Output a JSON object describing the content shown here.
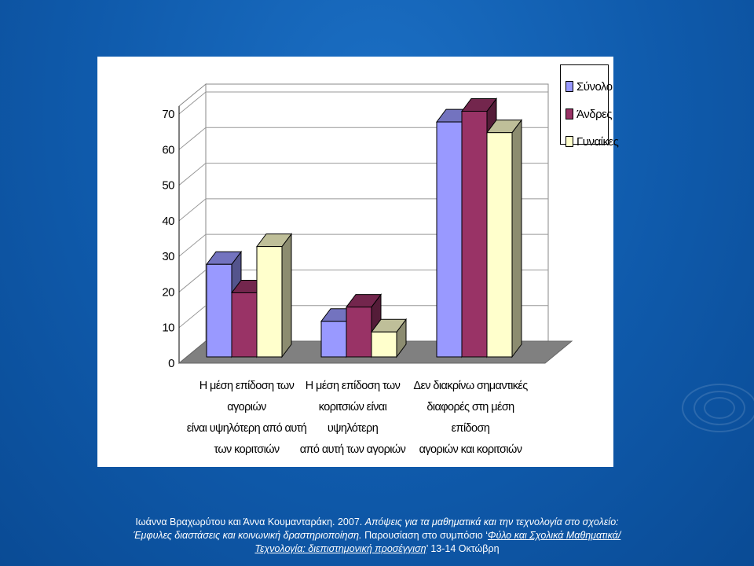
{
  "chart_data": {
    "type": "bar",
    "categories": [
      "Η μέση επίδοση των αγοριών είναι υψηλότερη από αυτή των κοριτσιών",
      "Η μέση επίδοση των κοριτσιών είναι υψηλότερη από αυτή των αγοριών",
      "Δεν διακρίνω σημαντικές διαφορές στη μέση επίδοση αγοριών και κοριτσιών"
    ],
    "category_lines": [
      [
        "Η μέση επίδοση των αγοριών",
        "είναι υψηλότερη από αυτή",
        "των κοριτσιών"
      ],
      [
        "Η μέση επίδοση των",
        "κοριτσιών είναι υψηλότερη",
        "από αυτή των αγοριών"
      ],
      [
        "Δεν διακρίνω σημαντικές",
        "διαφορές στη μέση επίδοση",
        "αγοριών και κοριτσιών"
      ]
    ],
    "series": [
      {
        "name": "Σύνολο",
        "values": [
          26,
          10,
          66
        ],
        "color": "#9999ff"
      },
      {
        "name": "Άνδρες",
        "values": [
          18,
          14,
          69
        ],
        "color": "#993366"
      },
      {
        "name": "Γυναίκες",
        "values": [
          31,
          7,
          63
        ],
        "color": "#ffffcc"
      }
    ],
    "yticks": [
      "0",
      "10",
      "20",
      "30",
      "40",
      "50",
      "60",
      "70"
    ],
    "ylim": [
      0,
      70
    ],
    "title": "",
    "xlabel": "",
    "ylabel": "",
    "grid": true,
    "legend_position": "top-right",
    "style": "3d-clustered-column"
  },
  "caption": {
    "authors": "Ιωάννα Βραχωρύτου και Άννα Κουμανταράκη. 2007.",
    "title_italic": "Απόψεις για τα μαθηματικά και την τεχνολογία στο σχολείο: Έμφυλες διαστάσεις και κοινωνική δραστηριοποίηση.",
    "presentation": "Παρουσίαση στο συμπόσιο ‘",
    "symposium_underlined": "Φύλο και Σχολικά Μαθηματικά/Τεχνολογία: διεπιστημονική προσέγγιση",
    "closing": "’ 13-14 Οκτώβρη"
  }
}
